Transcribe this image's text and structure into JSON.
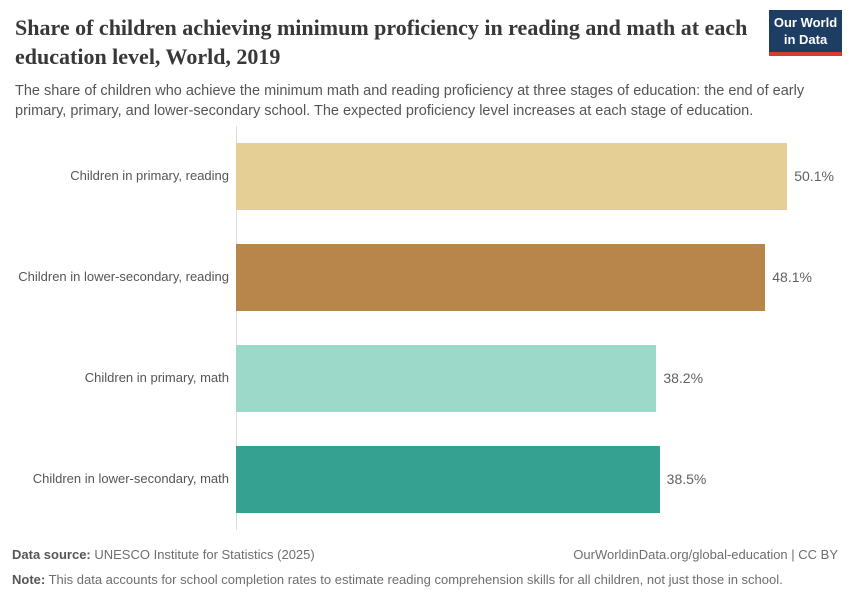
{
  "header": {
    "title": "Share of children achieving minimum proficiency in reading and math at each education level, World, 2019",
    "subtitle": "The share of children who achieve the minimum math and reading proficiency at three stages of education: the end of early primary, primary, and lower-secondary school. The expected proficiency level increases at each stage of education.",
    "logo": {
      "line1": "Our World",
      "line2": "in Data",
      "bg_color": "#1d3d63",
      "stripe_color": "#d93a34",
      "text_color": "#ffffff"
    }
  },
  "chart_data": {
    "type": "bar",
    "orientation": "horizontal",
    "title": "Share of children achieving minimum proficiency in reading and math at each education level, World, 2019",
    "categories": [
      "Children in primary, reading",
      "Children in lower-secondary, reading",
      "Children in primary, math",
      "Children in lower-secondary, math"
    ],
    "values": [
      50.1,
      48.1,
      38.2,
      38.5
    ],
    "value_labels": [
      "50.1%",
      "48.1%",
      "38.2%",
      "38.5%"
    ],
    "bar_colors": [
      "#e6cf95",
      "#b8854a",
      "#9cd9c9",
      "#35a190"
    ],
    "xlim": [
      0,
      55.8
    ],
    "unit": "%",
    "grid": false,
    "legend": "none",
    "axis_line_color": "#dcdcdc"
  },
  "footer": {
    "source_label": "Data source:",
    "source_text": " UNESCO Institute for Statistics (2025)",
    "link": "OurWorldinData.org/global-education | CC BY",
    "note_label": "Note:",
    "note_text": " This data accounts for school completion rates to estimate reading comprehension skills for all children, not just those in school."
  }
}
